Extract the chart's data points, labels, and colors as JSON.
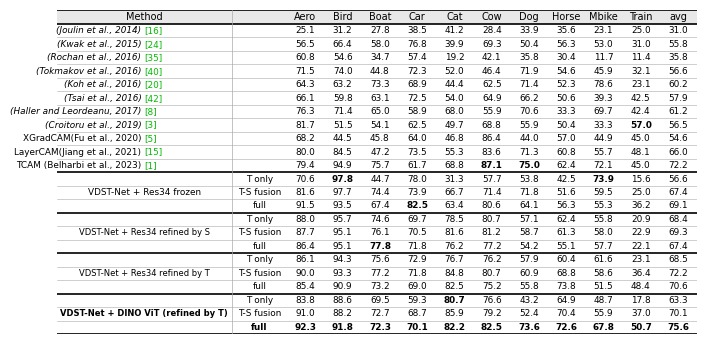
{
  "prior_rows": [
    {
      "method": "(Joulin et al., 2014) ",
      "ref": "[16]",
      "values": [
        "25.1",
        "31.2",
        "27.8",
        "38.5",
        "41.2",
        "28.4",
        "33.9",
        "35.6",
        "23.1",
        "25.0",
        "31.0"
      ],
      "bold_vals": []
    },
    {
      "method": "(Kwak et al., 2015) ",
      "ref": "[24]",
      "values": [
        "56.5",
        "66.4",
        "58.0",
        "76.8",
        "39.9",
        "69.3",
        "50.4",
        "56.3",
        "53.0",
        "31.0",
        "55.8"
      ],
      "bold_vals": []
    },
    {
      "method": "(Rochan et al., 2016) ",
      "ref": "[35]",
      "values": [
        "60.8",
        "54.6",
        "34.7",
        "57.4",
        "19.2",
        "42.1",
        "35.8",
        "30.4",
        "11.7",
        "11.4",
        "35.8"
      ],
      "bold_vals": []
    },
    {
      "method": "(Tokmakov et al., 2016) ",
      "ref": "[40]",
      "values": [
        "71.5",
        "74.0",
        "44.8",
        "72.3",
        "52.0",
        "46.4",
        "71.9",
        "54.6",
        "45.9",
        "32.1",
        "56.6"
      ],
      "bold_vals": []
    },
    {
      "method": "(Koh et al., 2016) ",
      "ref": "[20]",
      "values": [
        "64.3",
        "63.2",
        "73.3",
        "68.9",
        "44.4",
        "62.5",
        "71.4",
        "52.3",
        "78.6",
        "23.1",
        "60.2"
      ],
      "bold_vals": []
    },
    {
      "method": "(Tsai et al., 2016) ",
      "ref": "[42]",
      "values": [
        "66.1",
        "59.8",
        "63.1",
        "72.5",
        "54.0",
        "64.9",
        "66.2",
        "50.6",
        "39.3",
        "42.5",
        "57.9"
      ],
      "bold_vals": []
    },
    {
      "method": "(Haller and Leordeanu, 2017) ",
      "ref": "[8]",
      "values": [
        "76.3",
        "71.4",
        "65.0",
        "58.9",
        "68.0",
        "55.9",
        "70.6",
        "33.3",
        "69.7",
        "42.4",
        "61.2"
      ],
      "bold_vals": []
    },
    {
      "method": "(Croitoru et al., 2019) ",
      "ref": "[3]",
      "values": [
        "81.7",
        "51.5",
        "54.1",
        "62.5",
        "49.7",
        "68.8",
        "55.9",
        "50.4",
        "33.3",
        "57.0",
        "56.5"
      ],
      "bold_vals": [
        9
      ]
    },
    {
      "method": "XGradCAM(Fu et al., 2020) ",
      "ref": "[5]",
      "values": [
        "68.2",
        "44.5",
        "45.8",
        "64.0",
        "46.8",
        "86.4",
        "44.0",
        "57.0",
        "44.9",
        "45.0",
        "54.6"
      ],
      "bold_vals": [],
      "no_italic": true
    },
    {
      "method": "LayerCAM(Jiang et al., 2021) ",
      "ref": "[15]",
      "values": [
        "80.0",
        "84.5",
        "47.2",
        "73.5",
        "55.3",
        "83.6",
        "71.3",
        "60.8",
        "55.7",
        "48.1",
        "66.0"
      ],
      "bold_vals": [],
      "no_italic": true
    },
    {
      "method": "TCAM (Belharbi et al., 2023) ",
      "ref": "[1]",
      "values": [
        "79.4",
        "94.9",
        "75.7",
        "61.7",
        "68.8",
        "87.1",
        "75.0",
        "62.4",
        "72.1",
        "45.0",
        "72.2"
      ],
      "bold_vals": [
        5,
        6
      ],
      "no_italic": true
    }
  ],
  "groups": [
    {
      "label": "VDST-Net + Res34 frozen",
      "bold_label": false,
      "subs": [
        "T only",
        "T-S fusion",
        "full"
      ],
      "rows": [
        {
          "values": [
            "70.6",
            "97.8",
            "44.7",
            "78.0",
            "31.3",
            "57.7",
            "53.8",
            "42.5",
            "73.9",
            "15.6",
            "56.6"
          ],
          "bold_vals": [
            1,
            8
          ]
        },
        {
          "values": [
            "81.6",
            "97.7",
            "74.4",
            "73.9",
            "66.7",
            "71.4",
            "71.8",
            "51.6",
            "59.5",
            "25.0",
            "67.4"
          ],
          "bold_vals": []
        },
        {
          "values": [
            "91.5",
            "93.5",
            "67.4",
            "82.5",
            "63.4",
            "80.6",
            "64.1",
            "56.3",
            "55.3",
            "36.2",
            "69.1"
          ],
          "bold_vals": [
            3
          ]
        }
      ]
    },
    {
      "label": "VDST-Net + Res34 refined by S",
      "bold_label": false,
      "subs": [
        "T only",
        "T-S fusion",
        "full"
      ],
      "rows": [
        {
          "values": [
            "88.0",
            "95.7",
            "74.6",
            "69.7",
            "78.5",
            "80.7",
            "57.1",
            "62.4",
            "55.8",
            "20.9",
            "68.4"
          ],
          "bold_vals": []
        },
        {
          "values": [
            "87.7",
            "95.1",
            "76.1",
            "70.5",
            "81.6",
            "81.2",
            "58.7",
            "61.3",
            "58.0",
            "22.9",
            "69.3"
          ],
          "bold_vals": []
        },
        {
          "values": [
            "86.4",
            "95.1",
            "77.8",
            "71.8",
            "76.2",
            "77.2",
            "54.2",
            "55.1",
            "57.7",
            "22.1",
            "67.4"
          ],
          "bold_vals": [
            2
          ]
        }
      ]
    },
    {
      "label": "VDST-Net + Res34 refined by T",
      "bold_label": false,
      "subs": [
        "T only",
        "T-S fusion",
        "full"
      ],
      "rows": [
        {
          "values": [
            "86.1",
            "94.3",
            "75.6",
            "72.9",
            "76.7",
            "76.2",
            "57.9",
            "60.4",
            "61.6",
            "23.1",
            "68.5"
          ],
          "bold_vals": []
        },
        {
          "values": [
            "90.0",
            "93.3",
            "77.2",
            "71.8",
            "84.8",
            "80.7",
            "60.9",
            "68.8",
            "58.6",
            "36.4",
            "72.2"
          ],
          "bold_vals": []
        },
        {
          "values": [
            "85.4",
            "90.9",
            "73.2",
            "69.0",
            "82.5",
            "75.2",
            "55.8",
            "73.8",
            "51.5",
            "48.4",
            "70.6"
          ],
          "bold_vals": []
        }
      ]
    },
    {
      "label": "VDST-Net + DINO ViT (refined by T)",
      "bold_label": true,
      "subs": [
        "T only",
        "T-S fusion",
        "full"
      ],
      "rows": [
        {
          "values": [
            "83.8",
            "88.6",
            "69.5",
            "59.3",
            "80.7",
            "76.6",
            "43.2",
            "64.9",
            "48.7",
            "17.8",
            "63.3"
          ],
          "bold_vals": []
        },
        {
          "values": [
            "91.0",
            "88.2",
            "72.7",
            "68.7",
            "85.9",
            "79.2",
            "52.4",
            "70.4",
            "55.9",
            "37.0",
            "70.1"
          ],
          "bold_vals": [
            4
          ]
        },
        {
          "values": [
            "92.3",
            "91.8",
            "72.3",
            "70.1",
            "82.2",
            "82.5",
            "73.6",
            "72.6",
            "67.8",
            "50.7",
            "75.6"
          ],
          "bold_vals": [
            0,
            1,
            2,
            3,
            4,
            5,
            6,
            7,
            8,
            9,
            10
          ],
          "all_bold": true
        }
      ]
    }
  ],
  "col_headers": [
    "Aero",
    "Bird",
    "Boat",
    "Car",
    "Cat",
    "Cow",
    "Dog",
    "Horse",
    "Mbike",
    "Train",
    "avg"
  ]
}
